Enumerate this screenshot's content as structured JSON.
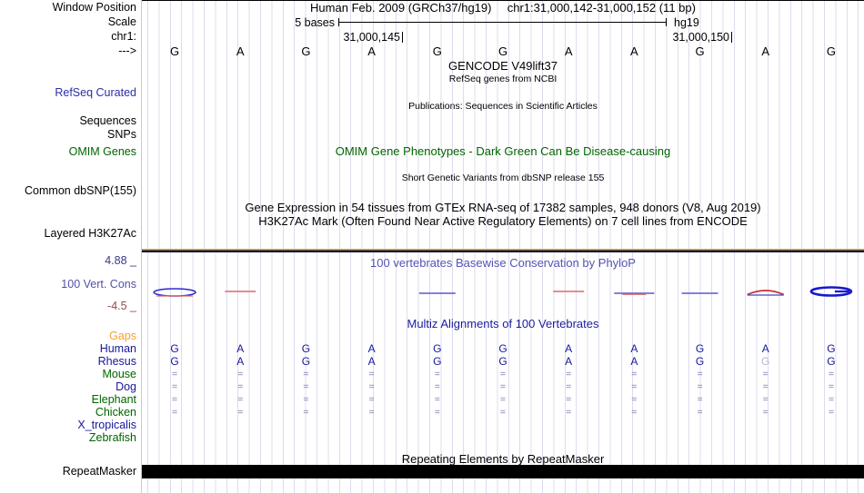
{
  "header": {
    "window_position_label": "Window Position",
    "assembly_title": "Human Feb. 2009 (GRCh37/hg19)",
    "position_title": "chr1:31,000,142-31,000,152 (11 bp)"
  },
  "scale_row": {
    "label": "Scale",
    "scale_text": "5 bases",
    "assembly_tag": "hg19"
  },
  "position_row": {
    "label": "chr1:",
    "tick_labels": [
      "31,000,145",
      "31,000,150"
    ]
  },
  "sequence_row": {
    "strand_arrow": "--->",
    "bases": [
      "G",
      "A",
      "G",
      "A",
      "G",
      "G",
      "A",
      "A",
      "G",
      "A",
      "G"
    ]
  },
  "gencode": {
    "title": "GENCODE V49lift37",
    "subtitle": "RefSeq genes from NCBI"
  },
  "refseq": {
    "label": "RefSeq Curated"
  },
  "publications": {
    "title": "Publications: Sequences in Scientific Articles"
  },
  "sequences": {
    "label": "Sequences"
  },
  "snps": {
    "label": "SNPs"
  },
  "omim": {
    "label": "OMIM Genes",
    "title": "OMIM Gene Phenotypes - Dark Green Can Be Disease-causing"
  },
  "dbsnp": {
    "label": "Common dbSNP(155)",
    "title": "Short Genetic Variants from dbSNP release 155"
  },
  "gtex": {
    "title": "Gene Expression in 54 tissues from GTEx RNA-seq of 17382 samples, 948 donors (V8, Aug 2019)"
  },
  "h3k27ac": {
    "label": "Layered H3K27Ac",
    "title": "H3K27Ac Mark (Often Found Near Active Regulatory Elements) on 7 cell lines from ENCODE"
  },
  "conservation": {
    "label": "100 Vert. Cons",
    "title": "100 vertebrates Basewise Conservation by PhyloP",
    "axis_max": "4.88 _",
    "axis_min": "-4.5 _",
    "marks": [
      {
        "base": 0,
        "type": "blue-ellipse-red-line"
      },
      {
        "base": 1,
        "type": "red-line"
      },
      {
        "base": 4,
        "type": "blue-line"
      },
      {
        "base": 6,
        "type": "red-line"
      },
      {
        "base": 7,
        "type": "blue-red-line"
      },
      {
        "base": 8,
        "type": "blue-line"
      },
      {
        "base": 9,
        "type": "red-arc-blue-line"
      },
      {
        "base": 10,
        "type": "blue-ellipse-thick"
      }
    ]
  },
  "multiz": {
    "title": "Multiz Alignments of 100 Vertebrates",
    "rows": [
      {
        "label": "Gaps",
        "label_color": "orange",
        "cells": [
          "",
          "",
          "",
          "",
          "",
          "",
          "",
          "",
          "",
          "",
          ""
        ]
      },
      {
        "label": "Human",
        "label_color": "navy",
        "cells": [
          "G",
          "A",
          "G",
          "A",
          "G",
          "G",
          "A",
          "A",
          "G",
          "A",
          "G"
        ]
      },
      {
        "label": "Rhesus",
        "label_color": "navy",
        "cells": [
          "G",
          "A",
          "G",
          "A",
          "G",
          "G",
          "A",
          "A",
          "G",
          "G",
          "G"
        ],
        "faded_cols": [
          9
        ]
      },
      {
        "label": "Mouse",
        "label_color": "green",
        "cells": [
          "=",
          "=",
          "=",
          "=",
          "=",
          "=",
          "=",
          "=",
          "=",
          "=",
          "="
        ]
      },
      {
        "label": "Dog",
        "label_color": "navy",
        "cells": [
          "=",
          "=",
          "=",
          "=",
          "=",
          "=",
          "=",
          "=",
          "=",
          "=",
          "="
        ]
      },
      {
        "label": "Elephant",
        "label_color": "green",
        "cells": [
          "=",
          "=",
          "=",
          "=",
          "=",
          "=",
          "=",
          "=",
          "=",
          "=",
          "="
        ]
      },
      {
        "label": "Chicken",
        "label_color": "green",
        "cells": [
          "=",
          "=",
          "=",
          "=",
          "=",
          "=",
          "=",
          "=",
          "=",
          "=",
          "="
        ]
      },
      {
        "label": "X_tropicalis",
        "label_color": "navy",
        "cells": [
          "",
          "",
          "",
          "",
          "",
          "",
          "",
          "",
          "",
          "",
          ""
        ]
      },
      {
        "label": "Zebrafish",
        "label_color": "green",
        "cells": [
          "",
          "",
          "",
          "",
          "",
          "",
          "",
          "",
          "",
          "",
          ""
        ]
      }
    ]
  },
  "repeatmasker": {
    "label": "RepeatMasker",
    "title": "Repeating Elements by RepeatMasker"
  },
  "colors": {
    "refseq_label": "#2d2da8",
    "omim_green": "#006400",
    "cons_label": "#5252a8",
    "cons_axis_max": "#38388a",
    "cons_axis_min": "#964a4a",
    "gaps_orange": "#ff9e2d",
    "navy": "#17179c",
    "green": "#006400",
    "phylop_title": "#5353b5",
    "multiz_title": "#1b1b9e",
    "eq_mark": "#7a7ab8",
    "faded_letter": "#b5b5d8",
    "grid_line": "#dcdcee",
    "guide_pink": "#f9b4b4",
    "h3k27ac_gold": "#d9b430",
    "cons_blue": "#2a2ac8",
    "cons_red": "#e06868",
    "repeat_black": "#000000"
  }
}
